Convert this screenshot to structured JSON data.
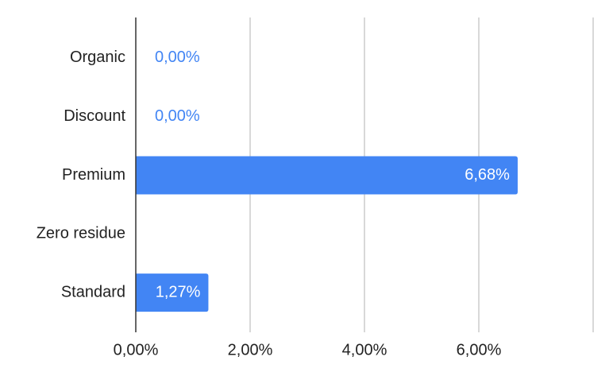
{
  "chart_data": {
    "type": "bar",
    "orientation": "horizontal",
    "categories": [
      "Organic",
      "Discount",
      "Premium",
      "Zero residue",
      "Standard"
    ],
    "values": [
      0,
      0,
      6.68,
      null,
      1.27
    ],
    "value_labels": [
      "0,00%",
      "0,00%",
      "6,68%",
      null,
      "1,27%"
    ],
    "color": "#4285f4",
    "xlim": [
      0,
      8
    ],
    "xticks": [
      {
        "value": 0,
        "label": "0,00%"
      },
      {
        "value": 2,
        "label": "2,00%"
      },
      {
        "value": 4,
        "label": "4,00%"
      },
      {
        "value": 6,
        "label": "6,00%"
      }
    ],
    "grid": true
  }
}
